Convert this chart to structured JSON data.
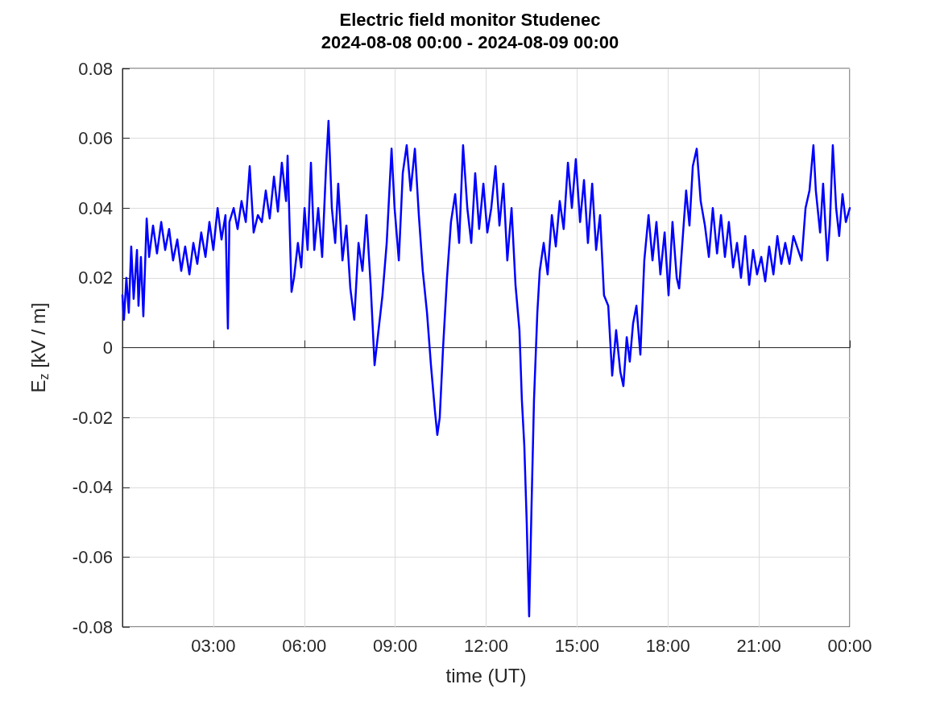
{
  "chart_data": {
    "type": "line",
    "title": "Electric field monitor Studenec",
    "subtitle": "2024-08-08 00:00 - 2024-08-09 00:00",
    "xlabel": "time (UT)",
    "ylabel": "E$_{z}$ [kV / m]",
    "x": [
      0,
      0.05,
      0.13,
      0.21,
      0.29,
      0.37,
      0.48,
      0.53,
      0.61,
      0.69,
      0.8,
      0.88,
      1.01,
      1.14,
      1.28,
      1.41,
      1.54,
      1.67,
      1.81,
      1.94,
      2.07,
      2.21,
      2.34,
      2.47,
      2.6,
      2.74,
      2.87,
      3.0,
      3.14,
      3.27,
      3.4,
      3.48,
      3.53,
      3.67,
      3.8,
      3.93,
      4.07,
      4.2,
      4.33,
      4.47,
      4.6,
      4.73,
      4.86,
      5.0,
      5.13,
      5.26,
      5.4,
      5.45,
      5.58,
      5.66,
      5.79,
      5.9,
      6.01,
      6.11,
      6.22,
      6.33,
      6.46,
      6.59,
      6.72,
      6.8,
      6.91,
      7.02,
      7.12,
      7.26,
      7.39,
      7.52,
      7.65,
      7.79,
      7.92,
      8.05,
      8.19,
      8.32,
      8.45,
      8.58,
      8.72,
      8.88,
      8.98,
      9.12,
      9.25,
      9.38,
      9.51,
      9.65,
      9.78,
      9.91,
      10.05,
      10.18,
      10.31,
      10.39,
      10.47,
      10.58,
      10.71,
      10.84,
      10.98,
      11.11,
      11.24,
      11.38,
      11.51,
      11.64,
      11.77,
      11.91,
      12.04,
      12.17,
      12.31,
      12.44,
      12.57,
      12.7,
      12.84,
      12.97,
      13.1,
      13.18,
      13.26,
      13.34,
      13.42,
      13.5,
      13.58,
      13.69,
      13.77,
      13.9,
      14.03,
      14.17,
      14.3,
      14.43,
      14.56,
      14.7,
      14.83,
      14.96,
      15.1,
      15.23,
      15.36,
      15.5,
      15.63,
      15.76,
      15.89,
      16.03,
      16.16,
      16.29,
      16.43,
      16.53,
      16.64,
      16.74,
      16.85,
      16.96,
      17.09,
      17.22,
      17.36,
      17.49,
      17.62,
      17.75,
      17.89,
      18.02,
      18.15,
      18.29,
      18.37,
      18.5,
      18.6,
      18.71,
      18.82,
      18.95,
      19.08,
      19.22,
      19.35,
      19.48,
      19.62,
      19.75,
      19.88,
      20.01,
      20.15,
      20.28,
      20.41,
      20.55,
      20.68,
      20.81,
      20.94,
      21.08,
      21.21,
      21.34,
      21.48,
      21.61,
      21.74,
      21.87,
      22.01,
      22.14,
      22.41,
      22.54,
      22.67,
      22.8,
      22.88,
      23.02,
      23.12,
      23.26,
      23.34,
      23.44,
      23.55,
      23.65,
      23.76,
      23.87,
      24.0
    ],
    "values": [
      0.015,
      0.008,
      0.02,
      0.01,
      0.029,
      0.014,
      0.028,
      0.012,
      0.026,
      0.009,
      0.037,
      0.026,
      0.035,
      0.027,
      0.036,
      0.028,
      0.034,
      0.025,
      0.031,
      0.022,
      0.029,
      0.021,
      0.03,
      0.024,
      0.033,
      0.026,
      0.036,
      0.028,
      0.04,
      0.031,
      0.038,
      0.0055,
      0.036,
      0.04,
      0.034,
      0.042,
      0.036,
      0.052,
      0.033,
      0.038,
      0.036,
      0.045,
      0.037,
      0.049,
      0.039,
      0.053,
      0.042,
      0.055,
      0.016,
      0.02,
      0.03,
      0.023,
      0.04,
      0.028,
      0.053,
      0.028,
      0.04,
      0.026,
      0.052,
      0.065,
      0.04,
      0.03,
      0.047,
      0.025,
      0.035,
      0.017,
      0.008,
      0.03,
      0.022,
      0.038,
      0.018,
      -0.005,
      0.005,
      0.015,
      0.03,
      0.057,
      0.04,
      0.025,
      0.05,
      0.058,
      0.045,
      0.057,
      0.038,
      0.022,
      0.01,
      -0.005,
      -0.018,
      -0.025,
      -0.02,
      0.0,
      0.02,
      0.036,
      0.044,
      0.03,
      0.058,
      0.04,
      0.03,
      0.05,
      0.034,
      0.047,
      0.033,
      0.04,
      0.052,
      0.035,
      0.047,
      0.025,
      0.04,
      0.018,
      0.005,
      -0.015,
      -0.028,
      -0.05,
      -0.077,
      -0.045,
      -0.015,
      0.01,
      0.022,
      0.03,
      0.021,
      0.038,
      0.029,
      0.042,
      0.034,
      0.053,
      0.04,
      0.054,
      0.036,
      0.048,
      0.03,
      0.047,
      0.028,
      0.038,
      0.015,
      0.012,
      -0.008,
      0.005,
      -0.007,
      -0.011,
      0.003,
      -0.004,
      0.007,
      0.012,
      -0.002,
      0.025,
      0.038,
      0.025,
      0.036,
      0.021,
      0.033,
      0.015,
      0.036,
      0.02,
      0.017,
      0.033,
      0.045,
      0.035,
      0.052,
      0.057,
      0.042,
      0.035,
      0.026,
      0.04,
      0.027,
      0.038,
      0.026,
      0.036,
      0.023,
      0.03,
      0.02,
      0.032,
      0.018,
      0.028,
      0.021,
      0.026,
      0.019,
      0.029,
      0.021,
      0.032,
      0.024,
      0.03,
      0.024,
      0.032,
      0.025,
      0.04,
      0.045,
      0.058,
      0.045,
      0.033,
      0.047,
      0.025,
      0.035,
      0.058,
      0.04,
      0.032,
      0.044,
      0.036,
      0.04
    ],
    "color": "#0000ff",
    "marker": "none",
    "line_style": "solid",
    "xlim": [
      0,
      24
    ],
    "xticks": [
      {
        "value": 3,
        "label": "03:00"
      },
      {
        "value": 6,
        "label": "06:00"
      },
      {
        "value": 9,
        "label": "09:00"
      },
      {
        "value": 12,
        "label": "12:00"
      },
      {
        "value": 15,
        "label": "15:00"
      },
      {
        "value": 18,
        "label": "18:00"
      },
      {
        "value": 21,
        "label": "21:00"
      },
      {
        "value": 24,
        "label": "00:00"
      }
    ],
    "ylim": [
      -0.08,
      0.08
    ],
    "yticks": [
      -0.08,
      -0.06,
      -0.04,
      -0.02,
      0,
      0.02,
      0.04,
      0.06,
      0.08
    ],
    "grid": true
  }
}
